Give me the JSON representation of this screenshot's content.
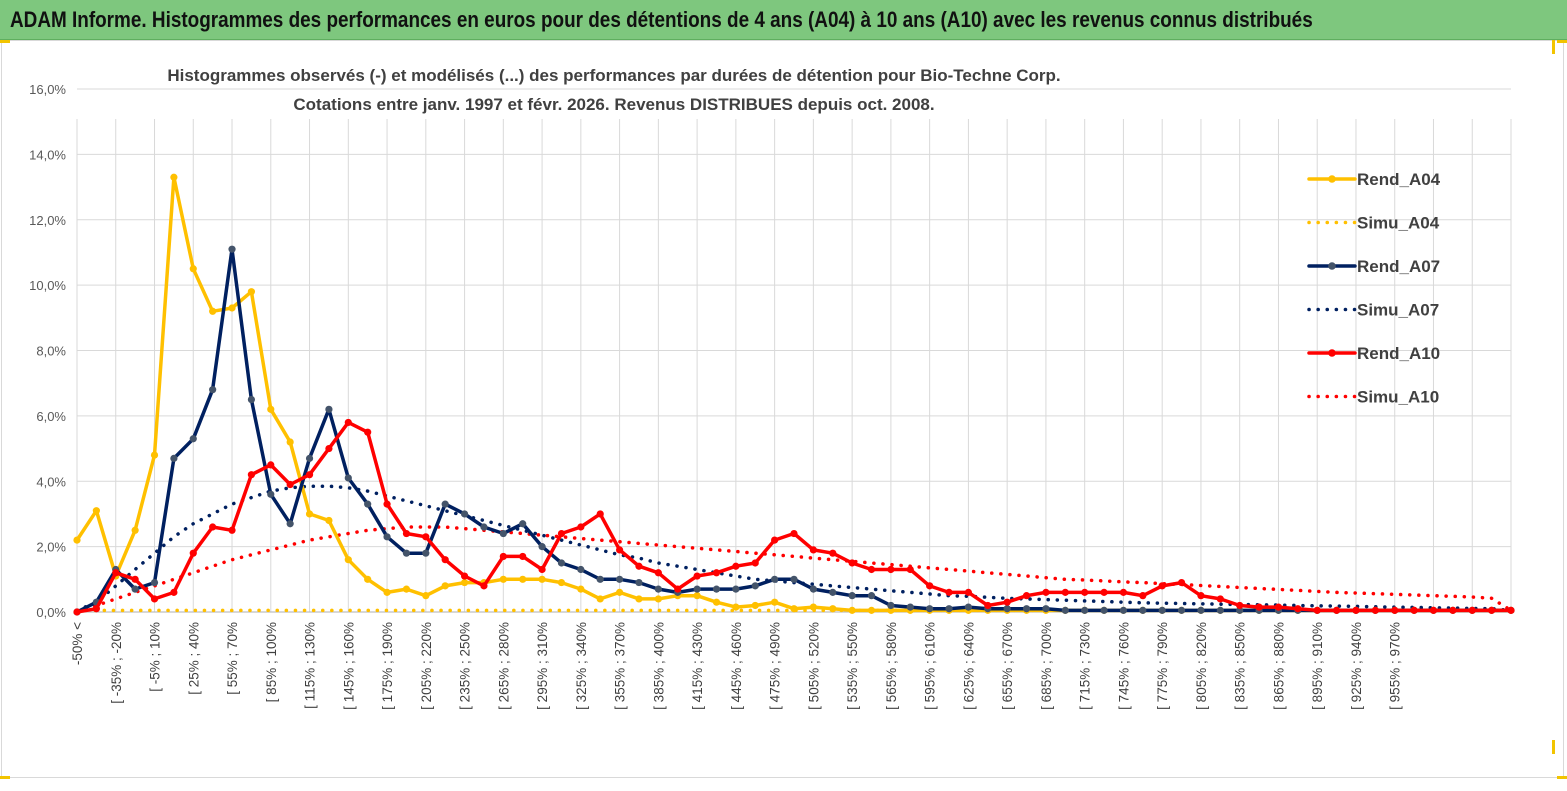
{
  "banner": {
    "title": "ADAM Informe. Histogrammes des performances en euros pour des détentions de 4 ans (A04) à 10 ans (A10) avec les revenus connus distribués"
  },
  "colors": {
    "banner_bg": "#7ec77e",
    "A04": "#ffc000",
    "A07": "#002060",
    "A10": "#ff0000",
    "grid": "#d9d9d9"
  },
  "chart_data": {
    "type": "line",
    "title": "Histogrammes observés (-)  et modélisés (...) des performances par durées de détention pour Bio-Techne Corp.",
    "subtitle": "Cotations entre janv. 1997 et févr.  2026. Revenus DISTRIBUES depuis oct. 2008.",
    "xlabel": "",
    "ylabel": "",
    "ylim": [
      0,
      16
    ],
    "yticks": [
      "0,0%",
      "2,0%",
      "4,0%",
      "6,0%",
      "8,0%",
      "10,0%",
      "12,0%",
      "14,0%",
      "16,0%"
    ],
    "grid": true,
    "legend_position": "right",
    "x_labels_shown": [
      "-50% <",
      "[ -35% ; -20%",
      "[ -5% ; 10%",
      "[ 25% ; 40%",
      "[ 55% ; 70%",
      "[ 85% ; 100%",
      "[ 115% ; 130%",
      "[ 145% ; 160%",
      "[ 175% ; 190%",
      "[ 205% ; 220%",
      "[ 235% ; 250%",
      "[ 265% ; 280%",
      "[ 295% ; 310%",
      "[ 325% ; 340%",
      "[ 355% ; 370%",
      "[ 385% ; 400%",
      "[ 415% ; 430%",
      "[ 445% ; 460%",
      "[ 475% ; 490%",
      "[ 505% ; 520%",
      "[ 535% ; 550%",
      "[ 565% ; 580%",
      "[ 595% ; 610%",
      "[ 625% ; 640%",
      "[ 655% ; 670%",
      "[ 685% ; 700%",
      "[ 715% ; 730%",
      "[ 745% ; 760%",
      "[ 775% ; 790%",
      "[ 805% ; 820%",
      "[ 835% ; 850%",
      "[ 865% ; 880%",
      "[ 895% ; 910%",
      "[ 925% ; 940%",
      "[ 955% ; 970%"
    ],
    "series": [
      {
        "name": "Rend_A04",
        "style": "solid",
        "color": "#ffc000",
        "values": [
          2.2,
          3.1,
          1.1,
          2.5,
          4.8,
          13.3,
          10.5,
          9.2,
          9.3,
          9.8,
          6.2,
          5.2,
          3.0,
          2.8,
          1.6,
          1.0,
          0.6,
          0.7,
          0.5,
          0.8,
          0.9,
          0.9,
          1.0,
          1.0,
          1.0,
          0.9,
          0.7,
          0.4,
          0.6,
          0.4,
          0.4,
          0.5,
          0.5,
          0.3,
          0.15,
          0.2,
          0.3,
          0.1,
          0.15,
          0.1,
          0.05,
          0.05,
          0.05,
          0.05,
          0.05,
          0.05,
          0.05,
          0.05,
          0.05,
          0.05,
          0.05,
          0.05,
          0.05,
          0.05,
          0.05,
          0.05,
          0.05,
          0.05,
          0.05,
          0.05,
          0.05,
          0.05,
          0.05,
          0.05,
          0.05,
          0.05,
          0.05,
          0.05,
          0.05,
          0.05,
          0.05,
          0.05,
          0.05,
          0.05,
          0.05
        ]
      },
      {
        "name": "Simu_A04",
        "style": "dotted",
        "color": "#ffc000",
        "values": [
          0.05,
          0.05,
          0.05,
          0.05,
          0.05,
          0.05,
          0.05,
          0.05,
          0.05,
          0.05,
          0.05,
          0.05,
          0.05,
          0.05,
          0.05,
          0.05,
          0.05,
          0.05,
          0.05,
          0.05,
          0.05,
          0.05,
          0.05,
          0.05,
          0.05,
          0.05,
          0.05,
          0.05,
          0.05,
          0.05,
          0.05,
          0.05,
          0.05,
          0.05,
          0.05,
          0.05,
          0.05,
          0.05,
          0.05,
          0.05,
          0.05,
          0.05,
          0.05,
          0.05,
          0.05,
          0.05,
          0.05,
          0.05,
          0.05,
          0.05,
          0.05,
          0.05,
          0.05,
          0.05,
          0.05,
          0.05,
          0.05,
          0.05,
          0.05,
          0.05,
          0.05,
          0.05,
          0.05,
          0.05,
          0.05,
          0.05,
          0.05,
          0.05,
          0.05,
          0.05,
          0.05,
          0.05,
          0.05,
          0.05,
          0.05
        ]
      },
      {
        "name": "Rend_A07",
        "style": "solid",
        "color": "#002060",
        "values": [
          0.0,
          0.3,
          1.3,
          0.7,
          0.9,
          4.7,
          5.3,
          6.8,
          11.1,
          6.5,
          3.6,
          2.7,
          4.7,
          6.2,
          4.1,
          3.3,
          2.3,
          1.8,
          1.8,
          3.3,
          3.0,
          2.6,
          2.4,
          2.7,
          2.0,
          1.5,
          1.3,
          1.0,
          1.0,
          0.9,
          0.7,
          0.6,
          0.7,
          0.7,
          0.7,
          0.8,
          1.0,
          1.0,
          0.7,
          0.6,
          0.5,
          0.5,
          0.2,
          0.15,
          0.1,
          0.1,
          0.15,
          0.1,
          0.1,
          0.1,
          0.1,
          0.05,
          0.05,
          0.05,
          0.05,
          0.05,
          0.05,
          0.05,
          0.05,
          0.05,
          0.05,
          0.05,
          0.05,
          0.05,
          0.05,
          0.05,
          0.05,
          0.05,
          0.05,
          0.05,
          0.05,
          0.05,
          0.05,
          0.05,
          0.05
        ]
      },
      {
        "name": "Simu_A07",
        "style": "dotted",
        "color": "#002060",
        "values": [
          0.05,
          0.3,
          0.8,
          1.3,
          1.8,
          2.3,
          2.7,
          3.0,
          3.3,
          3.5,
          3.7,
          3.8,
          3.85,
          3.85,
          3.8,
          3.7,
          3.55,
          3.4,
          3.25,
          3.1,
          2.95,
          2.8,
          2.65,
          2.5,
          2.35,
          2.2,
          2.05,
          1.9,
          1.75,
          1.65,
          1.5,
          1.4,
          1.3,
          1.2,
          1.1,
          1.0,
          0.95,
          0.9,
          0.85,
          0.8,
          0.75,
          0.7,
          0.65,
          0.6,
          0.55,
          0.5,
          0.48,
          0.45,
          0.42,
          0.4,
          0.38,
          0.36,
          0.34,
          0.32,
          0.3,
          0.28,
          0.27,
          0.26,
          0.25,
          0.24,
          0.23,
          0.22,
          0.21,
          0.2,
          0.19,
          0.18,
          0.17,
          0.16,
          0.15,
          0.14,
          0.13,
          0.12,
          0.11,
          0.1,
          0.05
        ]
      },
      {
        "name": "Rend_A10",
        "style": "solid",
        "color": "#ff0000",
        "values": [
          0.0,
          0.1,
          1.2,
          1.0,
          0.4,
          0.6,
          1.8,
          2.6,
          2.5,
          4.2,
          4.5,
          3.9,
          4.2,
          5.0,
          5.8,
          5.5,
          3.3,
          2.4,
          2.3,
          1.6,
          1.1,
          0.8,
          1.7,
          1.7,
          1.3,
          2.4,
          2.6,
          3.0,
          1.9,
          1.4,
          1.2,
          0.7,
          1.1,
          1.2,
          1.4,
          1.5,
          2.2,
          2.4,
          1.9,
          1.8,
          1.5,
          1.3,
          1.3,
          1.3,
          0.8,
          0.6,
          0.6,
          0.2,
          0.3,
          0.5,
          0.6,
          0.6,
          0.6,
          0.6,
          0.6,
          0.5,
          0.8,
          0.9,
          0.5,
          0.4,
          0.2,
          0.15,
          0.15,
          0.1,
          0.05,
          0.05,
          0.05,
          0.05,
          0.05,
          0.05,
          0.05,
          0.05,
          0.05,
          0.05,
          0.05
        ]
      },
      {
        "name": "Simu_A10",
        "style": "dotted",
        "color": "#ff0000",
        "values": [
          0.05,
          0.2,
          0.4,
          0.6,
          0.8,
          1.0,
          1.2,
          1.4,
          1.6,
          1.75,
          1.9,
          2.05,
          2.2,
          2.3,
          2.4,
          2.5,
          2.55,
          2.6,
          2.6,
          2.6,
          2.55,
          2.5,
          2.45,
          2.4,
          2.35,
          2.3,
          2.25,
          2.2,
          2.15,
          2.1,
          2.05,
          2.0,
          1.95,
          1.9,
          1.85,
          1.8,
          1.75,
          1.7,
          1.65,
          1.6,
          1.55,
          1.5,
          1.45,
          1.4,
          1.35,
          1.3,
          1.25,
          1.2,
          1.15,
          1.1,
          1.05,
          1.0,
          0.98,
          0.95,
          0.92,
          0.9,
          0.87,
          0.84,
          0.81,
          0.78,
          0.75,
          0.72,
          0.69,
          0.66,
          0.63,
          0.6,
          0.58,
          0.56,
          0.54,
          0.52,
          0.5,
          0.48,
          0.46,
          0.42,
          0.05
        ]
      }
    ]
  }
}
